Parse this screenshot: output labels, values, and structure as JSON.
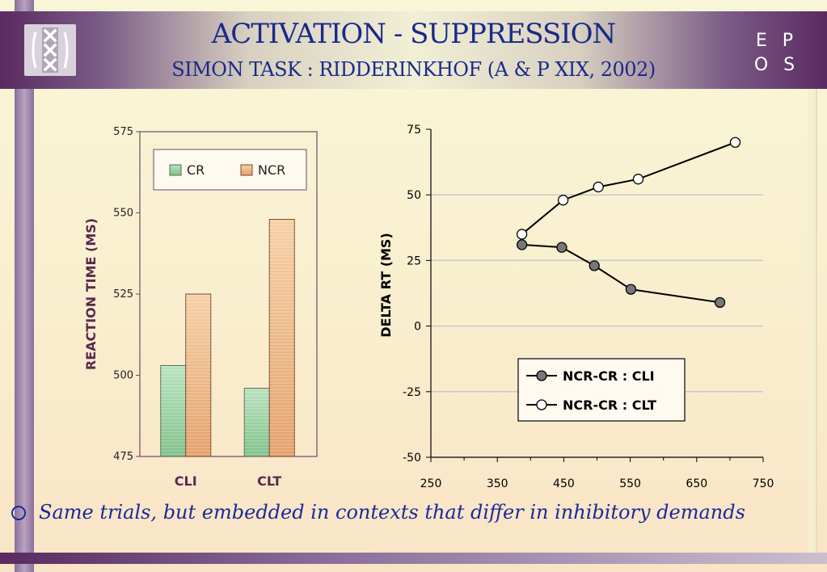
{
  "header": {
    "title": "ACTIVATION - SUPPRESSION",
    "subtitle": "SIMON TASK : RIDDERINKHOF (A & P XIX, 2002)",
    "brand_line1": "E P",
    "brand_line2": "O S"
  },
  "bullet": {
    "text": "Same trials, but embedded in contexts that differ in inhibitory demands"
  },
  "colors": {
    "title": "#1a2a8a",
    "header_purple": "#5a2a60",
    "axis_label": "#5a2a50",
    "cr_bar": "#8fcf96",
    "ncr_bar": "#f0b883"
  },
  "chart_data": [
    {
      "type": "bar",
      "categories": [
        "CLI",
        "CLT"
      ],
      "series": [
        {
          "name": "CR",
          "values": [
            503,
            496
          ]
        },
        {
          "name": "NCR",
          "values": [
            525,
            548
          ]
        }
      ],
      "ylabel": "REACTION TIME (MS)",
      "xlabel": "",
      "ylim": [
        475,
        575
      ],
      "yticks": [
        475,
        500,
        525,
        550,
        575
      ],
      "legend": "top",
      "grid": false
    },
    {
      "type": "line",
      "series": [
        {
          "name": "NCR-CR : CLI",
          "marker": "filled-circle",
          "points": [
            [
              387,
              31
            ],
            [
              447,
              30
            ],
            [
              496,
              23
            ],
            [
              551,
              14
            ],
            [
              685,
              9
            ]
          ]
        },
        {
          "name": "NCR-CR : CLT",
          "marker": "open-circle",
          "points": [
            [
              387,
              35
            ],
            [
              449,
              48
            ],
            [
              502,
              53
            ],
            [
              562,
              56
            ],
            [
              708,
              70
            ]
          ]
        }
      ],
      "ylabel": "DELTA RT (MS)",
      "xlabel": "",
      "xlim": [
        250,
        750
      ],
      "ylim": [
        -50,
        75
      ],
      "xticks": [
        250,
        350,
        450,
        550,
        650,
        750
      ],
      "yticks": [
        -50,
        -25,
        0,
        25,
        50,
        75
      ],
      "grid": true,
      "legend": "bottom-right"
    }
  ]
}
